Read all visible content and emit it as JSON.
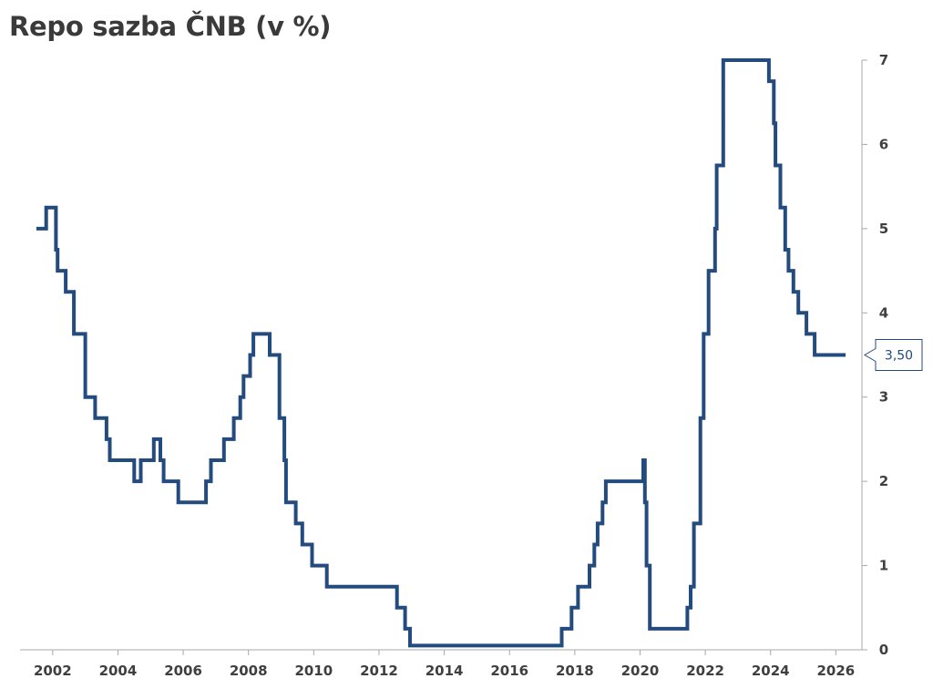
{
  "chart_data": {
    "type": "line",
    "title": "Repo sazba ČNB (v %)",
    "step": true,
    "xlim": [
      2001.0,
      2026.8
    ],
    "ylim": [
      0,
      7
    ],
    "x_ticks": [
      {
        "value": 2002,
        "label": "2002"
      },
      {
        "value": 2004,
        "label": "2004"
      },
      {
        "value": 2006,
        "label": "2006"
      },
      {
        "value": 2008,
        "label": "2008"
      },
      {
        "value": 2010,
        "label": "2010"
      },
      {
        "value": 2012,
        "label": "2012"
      },
      {
        "value": 2014,
        "label": "2014"
      },
      {
        "value": 2016,
        "label": "2016"
      },
      {
        "value": 2018,
        "label": "2018"
      },
      {
        "value": 2020,
        "label": "2020"
      },
      {
        "value": 2022,
        "label": "2022"
      },
      {
        "value": 2024,
        "label": "2024"
      },
      {
        "value": 2026,
        "label": "2026"
      }
    ],
    "y_ticks": [
      {
        "value": 0,
        "label": "0"
      },
      {
        "value": 1,
        "label": "1"
      },
      {
        "value": 2,
        "label": "2"
      },
      {
        "value": 3,
        "label": "3"
      },
      {
        "value": 4,
        "label": "4"
      },
      {
        "value": 5,
        "label": "5"
      },
      {
        "value": 6,
        "label": "6"
      },
      {
        "value": 7,
        "label": "7"
      }
    ],
    "y_axis_position": "right",
    "grid": false,
    "line_color": "#234b7d",
    "last_value_label": "3,50",
    "last_value": 3.5,
    "series": [
      {
        "x": [
          2001.5,
          2001.8,
          2001.95,
          2002.1,
          2002.15,
          2002.4,
          2002.65,
          2003.0,
          2003.3,
          2003.65,
          2003.75,
          2004.5,
          2004.7,
          2005.1,
          2005.3,
          2005.4,
          2005.85,
          2006.7,
          2006.85,
          2007.25,
          2007.55,
          2007.75,
          2007.85,
          2008.05,
          2008.15,
          2008.65,
          2008.95,
          2009.1,
          2009.15,
          2009.45,
          2009.65,
          2009.95,
          2010.4,
          2012.55,
          2012.8,
          2012.95,
          2017.6,
          2017.9,
          2018.1,
          2018.45,
          2018.6,
          2018.7,
          2018.85,
          2018.95,
          2019.35,
          2020.1,
          2020.15,
          2020.2,
          2020.3,
          2020.45,
          2021.45,
          2021.55,
          2021.65,
          2021.85,
          2021.95,
          2022.1,
          2022.3,
          2022.35,
          2022.45,
          2022.55,
          2023.95,
          2024.05,
          2024.1,
          2024.15,
          2024.3,
          2024.45,
          2024.55,
          2024.7,
          2024.85,
          2025.1,
          2025.35,
          2026.3
        ],
        "y": [
          5.0,
          5.25,
          5.25,
          4.75,
          4.5,
          4.25,
          3.75,
          3.0,
          2.75,
          2.5,
          2.25,
          2.0,
          2.25,
          2.5,
          2.25,
          2.0,
          1.75,
          2.0,
          2.25,
          2.5,
          2.75,
          3.0,
          3.25,
          3.5,
          3.75,
          3.5,
          2.75,
          2.25,
          1.75,
          1.5,
          1.25,
          1.0,
          0.75,
          0.5,
          0.25,
          0.05,
          0.25,
          0.5,
          0.75,
          1.0,
          1.25,
          1.5,
          1.75,
          2.0,
          2.0,
          2.25,
          1.75,
          1.0,
          0.25,
          0.25,
          0.5,
          0.75,
          1.5,
          2.75,
          3.75,
          4.5,
          5.0,
          5.75,
          5.75,
          7.0,
          6.75,
          6.75,
          6.25,
          5.75,
          5.25,
          4.75,
          4.5,
          4.25,
          4.0,
          3.75,
          3.5,
          3.5
        ]
      }
    ]
  }
}
